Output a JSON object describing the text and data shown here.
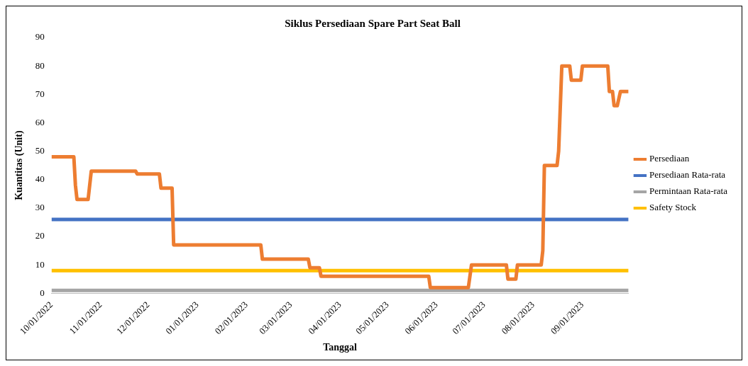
{
  "chart_data": {
    "type": "line",
    "title": "Siklus Persediaan Spare Part Seat Ball",
    "xlabel": "Tanggal",
    "ylabel": "Kuantitas (Unit)",
    "xlim": [
      "2022-10-01",
      "2023-09-30"
    ],
    "xticks": [
      {
        "value": "2022-10-01",
        "label": "10/01/2022"
      },
      {
        "value": "2022-11-01",
        "label": "11/01/2022"
      },
      {
        "value": "2022-12-01",
        "label": "12/01/2022"
      },
      {
        "value": "2023-01-01",
        "label": "01/01/2023"
      },
      {
        "value": "2023-02-01",
        "label": "02/01/2023"
      },
      {
        "value": "2023-03-01",
        "label": "03/01/2023"
      },
      {
        "value": "2023-04-01",
        "label": "04/01/2023"
      },
      {
        "value": "2023-05-01",
        "label": "05/01/2023"
      },
      {
        "value": "2023-06-01",
        "label": "06/01/2023"
      },
      {
        "value": "2023-07-01",
        "label": "07/01/2023"
      },
      {
        "value": "2023-08-01",
        "label": "08/01/2023"
      },
      {
        "value": "2023-09-01",
        "label": "09/01/2023"
      }
    ],
    "ylim": [
      0,
      90
    ],
    "yticks": [
      0,
      10,
      20,
      30,
      40,
      50,
      60,
      70,
      80,
      90
    ],
    "grid": false,
    "legend": "right",
    "line_style": "solid",
    "series": [
      {
        "name": "Persediaan",
        "color": "#ed7d31",
        "x": [
          "2022-10-01",
          "2022-10-15",
          "2022-10-16",
          "2022-10-17",
          "2022-10-24",
          "2022-10-26",
          "2022-11-23",
          "2022-11-24",
          "2022-12-08",
          "2022-12-09",
          "2022-12-16",
          "2022-12-17",
          "2023-02-10",
          "2023-02-11",
          "2023-03-12",
          "2023-03-13",
          "2023-03-19",
          "2023-03-20",
          "2023-05-27",
          "2023-05-28",
          "2023-06-21",
          "2023-06-23",
          "2023-07-15",
          "2023-07-16",
          "2023-07-21",
          "2023-07-22",
          "2023-08-06",
          "2023-08-07",
          "2023-08-08",
          "2023-08-16",
          "2023-08-17",
          "2023-08-19",
          "2023-08-24",
          "2023-08-25",
          "2023-08-31",
          "2023-09-01",
          "2023-09-17",
          "2023-09-18",
          "2023-09-20",
          "2023-09-21",
          "2023-09-23",
          "2023-09-25",
          "2023-09-30"
        ],
        "values": [
          48,
          48,
          38,
          33,
          33,
          43,
          43,
          42,
          42,
          37,
          37,
          17,
          17,
          12,
          12,
          9,
          9,
          6,
          6,
          2,
          2,
          10,
          10,
          5,
          5,
          10,
          10,
          15,
          45,
          45,
          50,
          80,
          80,
          75,
          75,
          80,
          80,
          71,
          71,
          66,
          66,
          71,
          71
        ]
      },
      {
        "name": "Persediaan Rata-rata",
        "color": "#4472c4",
        "x": [
          "2022-10-01",
          "2023-09-30"
        ],
        "values": [
          26,
          26
        ]
      },
      {
        "name": "Permintaan Rata-rata",
        "color": "#a5a5a5",
        "x": [
          "2022-10-01",
          "2023-09-30"
        ],
        "values": [
          1,
          1
        ]
      },
      {
        "name": "Safety Stock",
        "color": "#ffc000",
        "x": [
          "2022-10-01",
          "2023-09-30"
        ],
        "values": [
          8,
          8
        ]
      }
    ]
  }
}
